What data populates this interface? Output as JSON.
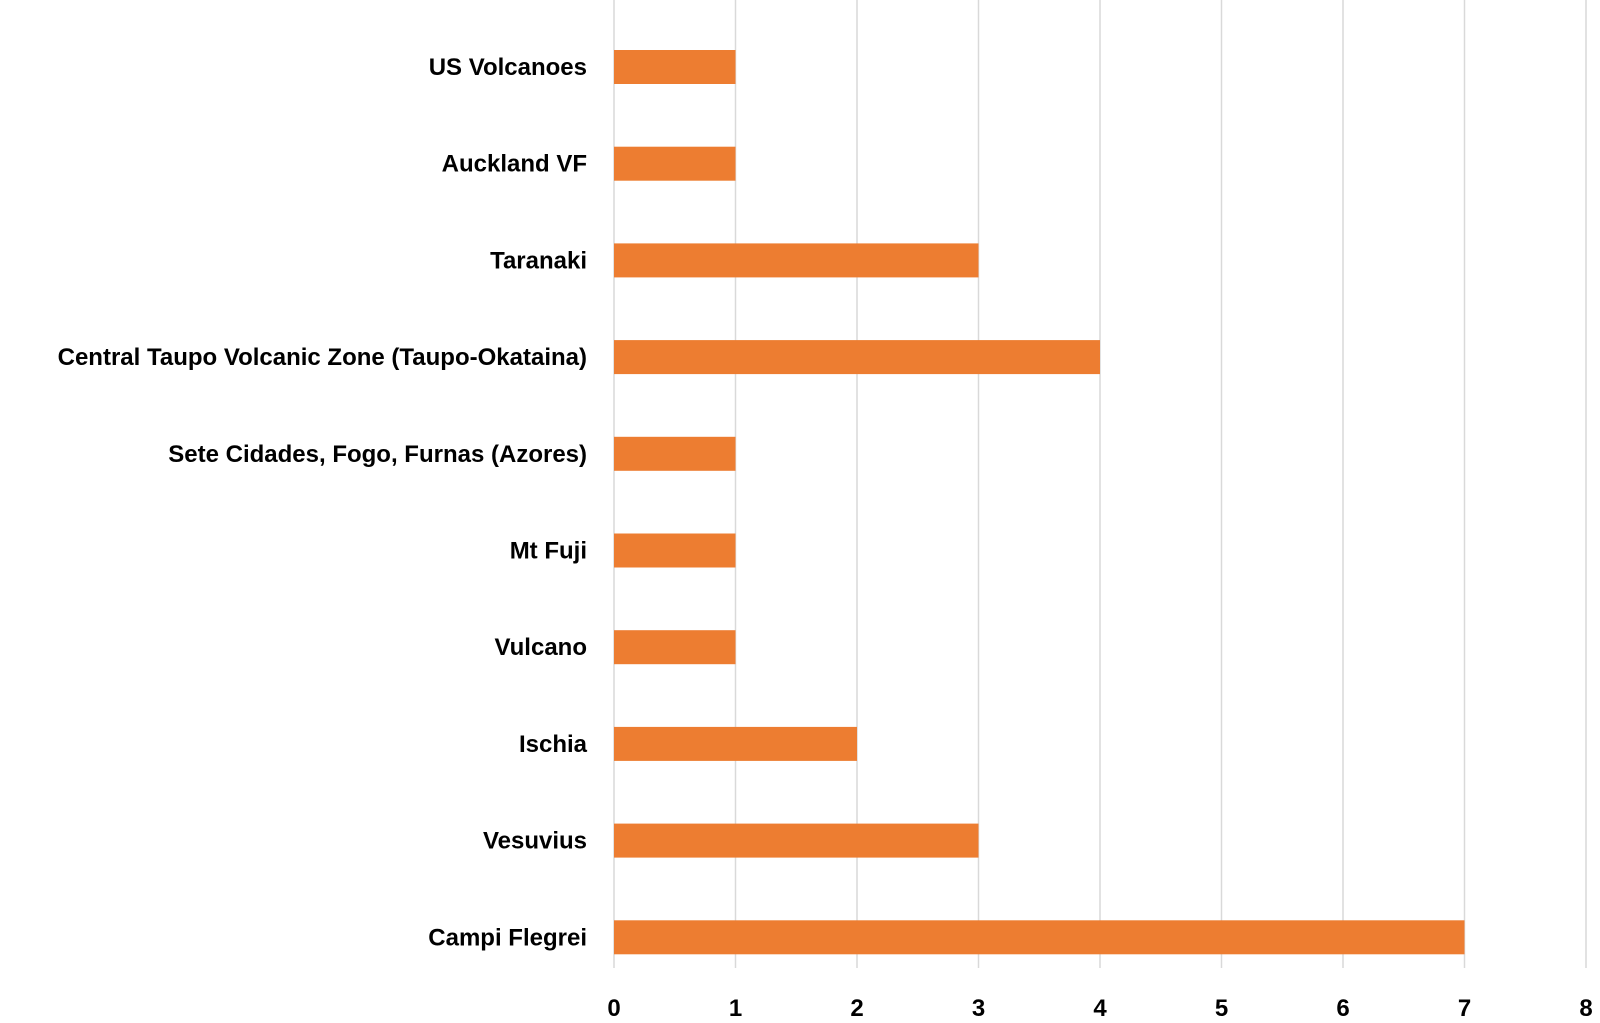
{
  "chart_data": {
    "type": "bar",
    "orientation": "horizontal",
    "categories": [
      "US Volcanoes",
      "Auckland VF",
      "Taranaki",
      "Central Taupo Volcanic Zone (Taupo-Okataina)",
      "Sete Cidades, Fogo, Furnas (Azores)",
      "Mt Fuji",
      "Vulcano",
      "Ischia",
      "Vesuvius",
      "Campi Flegrei"
    ],
    "values": [
      1,
      1,
      3,
      4,
      1,
      1,
      1,
      2,
      3,
      7
    ],
    "title": "",
    "xlabel": "",
    "ylabel": "",
    "xlim": [
      0,
      8
    ],
    "x_ticks": [
      "0",
      "1",
      "2",
      "3",
      "4",
      "5",
      "6",
      "7",
      "8"
    ],
    "grid": "vertical",
    "legend": "none",
    "bar_color": "#ed7d31"
  },
  "colors": {
    "bar": "#ed7d31",
    "grid": "#d9d9d9",
    "text": "#000000",
    "background": "#ffffff"
  }
}
